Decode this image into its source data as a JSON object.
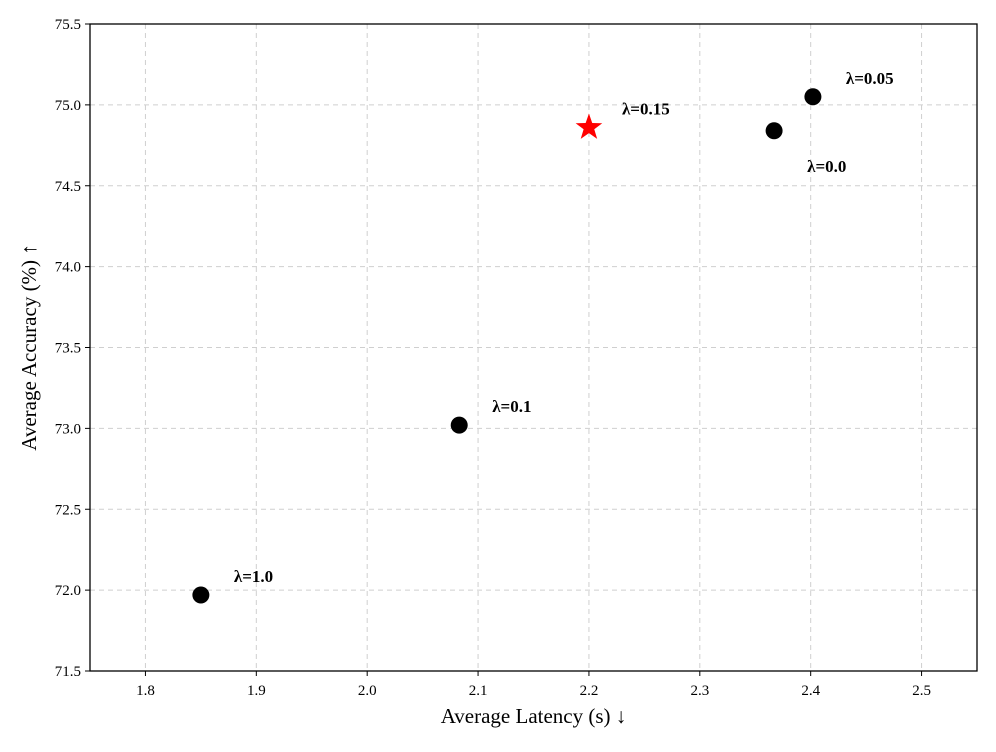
{
  "chart_data": {
    "type": "scatter",
    "xlabel": "Average Latency (s) ↓",
    "ylabel": "Average Accuracy (%) ↑",
    "xlim": [
      1.75,
      2.55
    ],
    "ylim": [
      71.5,
      75.5
    ],
    "xticks": [
      "1.8",
      "1.9",
      "2.0",
      "2.1",
      "2.2",
      "2.3",
      "2.4",
      "2.5"
    ],
    "yticks": [
      "71.5",
      "72.0",
      "72.5",
      "73.0",
      "73.5",
      "74.0",
      "74.5",
      "75.0",
      "75.5"
    ],
    "grid": true,
    "points": [
      {
        "label": "λ=1.0",
        "x": 1.85,
        "y": 71.97,
        "marker": "circle",
        "color": "#000000",
        "label_position": "upper-right"
      },
      {
        "label": "λ=0.1",
        "x": 2.083,
        "y": 73.02,
        "marker": "circle",
        "color": "#000000",
        "label_position": "upper-right"
      },
      {
        "label": "λ=0.15",
        "x": 2.2,
        "y": 74.86,
        "marker": "star",
        "color": "#ff0000",
        "label_position": "upper-right"
      },
      {
        "label": "λ=0.0",
        "x": 2.367,
        "y": 74.84,
        "marker": "circle",
        "color": "#000000",
        "label_position": "lower-right"
      },
      {
        "label": "λ=0.05",
        "x": 2.402,
        "y": 75.05,
        "marker": "circle",
        "color": "#000000",
        "label_position": "upper-right"
      }
    ]
  }
}
